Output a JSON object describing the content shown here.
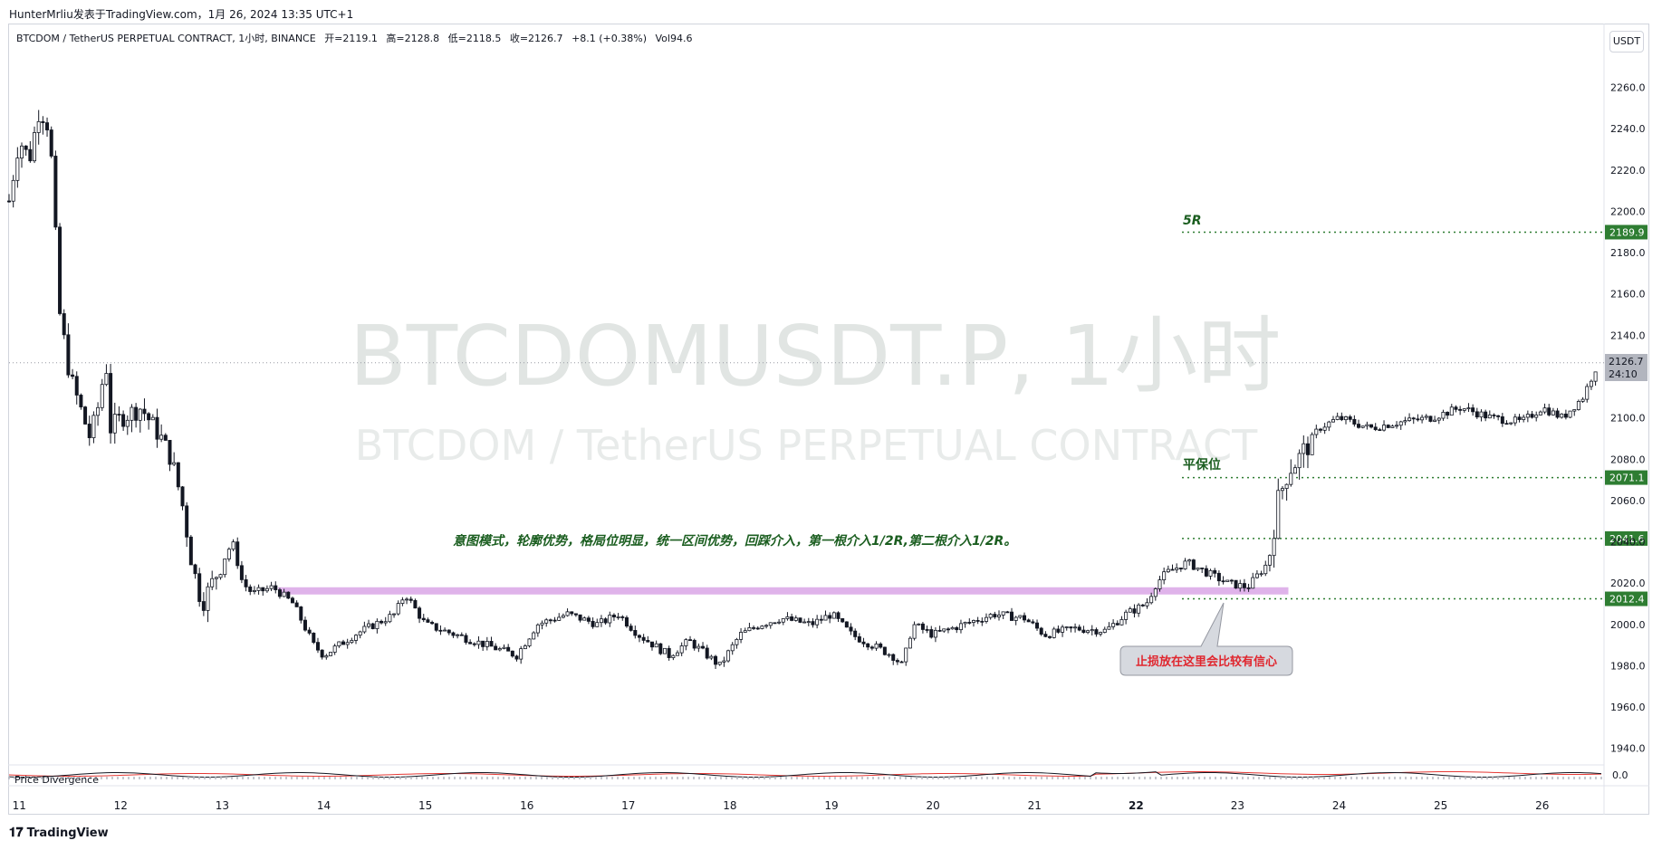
{
  "header": {
    "publish_line": "HunterMrliu发表于TradingView.com，1月 26, 2024 13:35 UTC+1"
  },
  "legend": {
    "symbol": "BTCDOM / TetherUS PERPETUAL CONTRACT, 1小时, BINANCE",
    "open": "开=2119.1",
    "high": "高=2128.8",
    "low": "低=2118.5",
    "close": "收=2126.7",
    "change": "+8.1 (+0.38%)",
    "volume": "Vol94.6"
  },
  "unit_button": "USDT",
  "watermark": {
    "line1": "BTCDOMUSDT.P, 1小时",
    "line2": "BTCDOM / TetherUS PERPETUAL CONTRACT"
  },
  "annotations": {
    "strategy_text": "意图模式，轮廓优势，格局位明显，统一区间优势，回踩介入，第一根介入1/2R,第二根介入1/2R。",
    "stop_note": "止损放在这里会比较有信心",
    "level_5r": "5R",
    "level_breakeven": "平保位"
  },
  "price_tags": {
    "current_price": "2126.7",
    "countdown": "24:10"
  },
  "indicator": {
    "name": "Price Divergence",
    "value": "0.0"
  },
  "footer": {
    "brand": "TradingView"
  },
  "colors": {
    "up": "#131722",
    "down": "#131722",
    "level_green": "#2e7d32",
    "zone": "#d9a6e6",
    "watermark": "#dfe3e1",
    "stop_bubble": "#d1d4dc",
    "stop_text": "#e0262e"
  },
  "chart_data": {
    "type": "candlestick",
    "symbol": "BTCDOMUSDT.P",
    "timeframe": "1小时",
    "y_axis": {
      "ticks": [
        1940.0,
        1960.0,
        1980.0,
        2000.0,
        2020.0,
        2040.0,
        2060.0,
        2080.0,
        2100.0,
        2120.0,
        2140.0,
        2160.0,
        2180.0,
        2200.0,
        2220.0,
        2240.0,
        2260.0
      ],
      "tick_labels": [
        "1940.0",
        "1960.0",
        "1980.0",
        "2000.0",
        "2020.0",
        "2040.0",
        "2060.0",
        "2080.0",
        "2100.0",
        "2120.0",
        "2140.0",
        "2160.0",
        "2180.0",
        "2200.0",
        "2220.0",
        "2240.0",
        "2260.0"
      ],
      "range": [
        1932,
        2276
      ]
    },
    "x_axis": {
      "labels": [
        "11",
        "12",
        "13",
        "14",
        "15",
        "16",
        "17",
        "18",
        "19",
        "20",
        "21",
        "22",
        "23",
        "24",
        "25",
        "26"
      ],
      "range_days": [
        10.9,
        26.6
      ]
    },
    "price_path": [
      [
        10.9,
        2205
      ],
      [
        11.0,
        2235
      ],
      [
        11.1,
        2225
      ],
      [
        11.2,
        2250
      ],
      [
        11.3,
        2240
      ],
      [
        11.4,
        2150
      ],
      [
        11.5,
        2120
      ],
      [
        11.6,
        2105
      ],
      [
        11.7,
        2090
      ],
      [
        11.8,
        2110
      ],
      [
        11.85,
        2130
      ],
      [
        11.9,
        2095
      ],
      [
        12.0,
        2100
      ],
      [
        12.2,
        2105
      ],
      [
        12.4,
        2090
      ],
      [
        12.5,
        2080
      ],
      [
        12.6,
        2060
      ],
      [
        12.7,
        2030
      ],
      [
        12.8,
        2010
      ],
      [
        12.9,
        2020
      ],
      [
        13.0,
        2030
      ],
      [
        13.1,
        2040
      ],
      [
        13.2,
        2020
      ],
      [
        13.3,
        2015
      ],
      [
        13.5,
        2018
      ],
      [
        13.7,
        2010
      ],
      [
        13.9,
        1990
      ],
      [
        14.0,
        1985
      ],
      [
        14.3,
        1995
      ],
      [
        14.5,
        2000
      ],
      [
        14.7,
        2005
      ],
      [
        14.8,
        2015
      ],
      [
        15.0,
        2000
      ],
      [
        15.3,
        1995
      ],
      [
        15.6,
        1990
      ],
      [
        15.9,
        1985
      ],
      [
        16.1,
        2000
      ],
      [
        16.4,
        2005
      ],
      [
        16.7,
        2000
      ],
      [
        16.9,
        2005
      ],
      [
        17.1,
        1995
      ],
      [
        17.4,
        1985
      ],
      [
        17.6,
        1992
      ],
      [
        17.9,
        1980
      ],
      [
        18.1,
        1995
      ],
      [
        18.3,
        2000
      ],
      [
        18.5,
        2003
      ],
      [
        18.8,
        2000
      ],
      [
        19.0,
        2005
      ],
      [
        19.2,
        1995
      ],
      [
        19.4,
        1990
      ],
      [
        19.6,
        1985
      ],
      [
        19.7,
        1980
      ],
      [
        19.8,
        2000
      ],
      [
        20.0,
        1995
      ],
      [
        20.3,
        2000
      ],
      [
        20.6,
        2005
      ],
      [
        20.9,
        2003
      ],
      [
        21.1,
        1995
      ],
      [
        21.4,
        1998
      ],
      [
        21.7,
        1997
      ],
      [
        21.9,
        2005
      ],
      [
        22.1,
        2010
      ],
      [
        22.2,
        2020
      ],
      [
        22.3,
        2025
      ],
      [
        22.5,
        2030
      ],
      [
        22.7,
        2025
      ],
      [
        22.9,
        2020
      ],
      [
        23.1,
        2018
      ],
      [
        23.3,
        2030
      ],
      [
        23.4,
        2060
      ],
      [
        23.5,
        2075
      ],
      [
        23.6,
        2080
      ],
      [
        23.8,
        2095
      ],
      [
        24.0,
        2100
      ],
      [
        24.3,
        2095
      ],
      [
        24.6,
        2098
      ],
      [
        24.9,
        2100
      ],
      [
        25.2,
        2105
      ],
      [
        25.5,
        2100
      ],
      [
        25.8,
        2098
      ],
      [
        26.0,
        2105
      ],
      [
        26.2,
        2100
      ],
      [
        26.4,
        2110
      ],
      [
        26.55,
        2126.7
      ]
    ],
    "levels": [
      {
        "label": "5R",
        "value": 2189.9
      },
      {
        "label": "平保位",
        "value": 2071.1
      },
      {
        "label": "",
        "value": 2041.6
      },
      {
        "label": "",
        "value": 2012.4
      }
    ],
    "zone": {
      "from_day": 13.55,
      "to_day": 23.5,
      "low": 2014.5,
      "high": 2018.0
    },
    "current_price": 2126.7,
    "grid": false
  }
}
